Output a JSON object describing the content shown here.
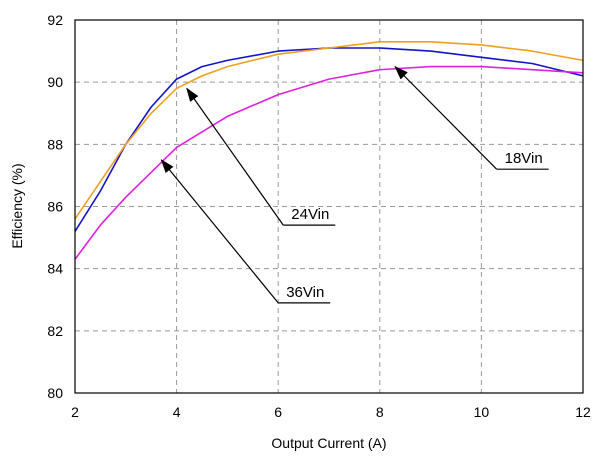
{
  "chart_data": {
    "type": "line",
    "xlabel": "Output Current (A)",
    "ylabel": "Efficiency (%)",
    "xlim": [
      2,
      12
    ],
    "ylim": [
      80,
      92
    ],
    "xticks": [
      2,
      4,
      6,
      8,
      10,
      12
    ],
    "yticks": [
      80,
      82,
      84,
      86,
      88,
      90,
      92
    ],
    "grid": true,
    "series": [
      {
        "name": "18Vin",
        "color": "#1414c8",
        "x": [
          2,
          2.5,
          3,
          3.5,
          4,
          4.5,
          5,
          6,
          7,
          8,
          9,
          10,
          11,
          12
        ],
        "y": [
          85.2,
          86.5,
          88.0,
          89.2,
          90.1,
          90.5,
          90.7,
          91.0,
          91.1,
          91.1,
          91.0,
          90.8,
          90.6,
          90.2
        ]
      },
      {
        "name": "24Vin",
        "color": "#f0a020",
        "x": [
          2,
          2.5,
          3,
          3.5,
          4,
          4.5,
          5,
          6,
          7,
          8,
          9,
          10,
          11,
          12
        ],
        "y": [
          85.6,
          86.8,
          88.0,
          89.0,
          89.8,
          90.2,
          90.5,
          90.9,
          91.1,
          91.3,
          91.3,
          91.2,
          91.0,
          90.7
        ]
      },
      {
        "name": "36Vin",
        "color": "#e020e0",
        "x": [
          2,
          2.5,
          3,
          3.5,
          4,
          4.5,
          5,
          6,
          7,
          8,
          9,
          10,
          11,
          12
        ],
        "y": [
          84.3,
          85.4,
          86.3,
          87.1,
          87.9,
          88.4,
          88.9,
          89.6,
          90.1,
          90.4,
          90.5,
          90.5,
          90.4,
          90.3
        ]
      }
    ],
    "annotations": [
      {
        "text": "18Vin",
        "target": [
          8.3,
          90.5
        ],
        "label_anchor": [
          10.3,
          87.2
        ]
      },
      {
        "text": "24Vin",
        "target": [
          4.2,
          89.8
        ],
        "label_anchor": [
          6.1,
          85.4
        ]
      },
      {
        "text": "36Vin",
        "target": [
          3.7,
          87.5
        ],
        "label_anchor": [
          6.0,
          82.9
        ]
      }
    ]
  }
}
